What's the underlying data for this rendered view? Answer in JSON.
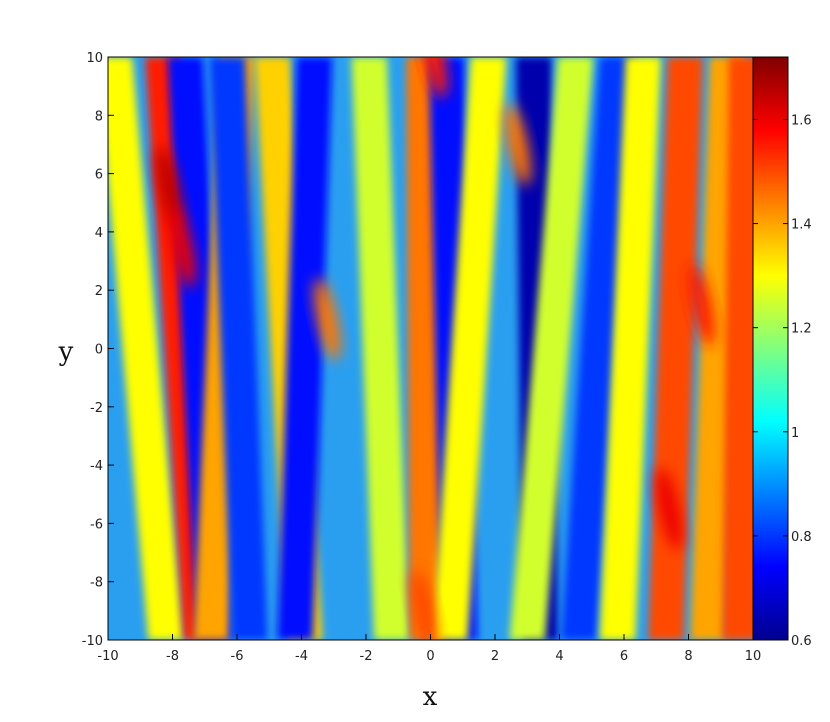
{
  "chart_data": {
    "type": "heatmap",
    "title": "",
    "xlabel": "x",
    "ylabel": "y",
    "xlim": [
      -10,
      10
    ],
    "ylim": [
      -10,
      10
    ],
    "x_ticks": [
      "-10",
      "-8",
      "-6",
      "-4",
      "-2",
      "0",
      "2",
      "4",
      "6",
      "8",
      "10"
    ],
    "y_ticks": [
      "10",
      "8",
      "6",
      "4",
      "2",
      "0",
      "-2",
      "-4",
      "-6",
      "-8",
      "-10"
    ],
    "colorbar": {
      "range": [
        0.6,
        1.72
      ],
      "ticks": [
        "1.6",
        "1.4",
        "1.2",
        "1",
        "0.8",
        "0.6"
      ],
      "colormap": "jet"
    },
    "bands": [
      {
        "x_top": -9.8,
        "x_bottom": -8.2,
        "value": 1.3
      },
      {
        "x_top": -8.3,
        "x_bottom": -7.1,
        "value": 1.55
      },
      {
        "x_top": -7.6,
        "x_bottom": -6.7,
        "value": 0.75
      },
      {
        "x_top": -6.0,
        "x_bottom": -6.8,
        "value": 1.4
      },
      {
        "x_top": -6.3,
        "x_bottom": -5.6,
        "value": 0.8
      },
      {
        "x_top": -4.9,
        "x_bottom": -3.9,
        "value": 1.35
      },
      {
        "x_top": -3.6,
        "x_bottom": -4.2,
        "value": 0.75
      },
      {
        "x_top": -1.9,
        "x_bottom": -1.2,
        "value": 1.25
      },
      {
        "x_top": -0.2,
        "x_bottom": -0.1,
        "value": 1.45
      },
      {
        "x_top": 0.5,
        "x_bottom": 0.9,
        "value": 0.75
      },
      {
        "x_top": 1.8,
        "x_bottom": 0.6,
        "value": 1.3
      },
      {
        "x_top": 3.2,
        "x_bottom": 3.4,
        "value": 0.65
      },
      {
        "x_top": 4.5,
        "x_bottom": 3.0,
        "value": 1.25
      },
      {
        "x_top": 5.8,
        "x_bottom": 4.6,
        "value": 0.8
      },
      {
        "x_top": 6.6,
        "x_bottom": 5.8,
        "value": 1.3
      },
      {
        "x_top": 7.9,
        "x_bottom": 7.3,
        "value": 1.5
      },
      {
        "x_top": 9.2,
        "x_bottom": 8.6,
        "value": 1.4
      },
      {
        "x_top": 9.8,
        "x_bottom": 9.6,
        "value": 1.5
      }
    ],
    "hotspots": [
      {
        "x": -8.1,
        "y": 5.5,
        "value": 1.65
      },
      {
        "x": -7.7,
        "y": 3.5,
        "value": 1.6
      },
      {
        "x": -3.2,
        "y": 1.0,
        "value": 1.45
      },
      {
        "x": 7.4,
        "y": -5.5,
        "value": 1.6
      },
      {
        "x": 8.4,
        "y": 1.5,
        "value": 1.55
      },
      {
        "x": -0.2,
        "y": -9.0,
        "value": 1.5
      },
      {
        "x": 0.1,
        "y": 10.0,
        "value": 1.55
      },
      {
        "x": 2.7,
        "y": 7.0,
        "value": 1.45
      }
    ]
  }
}
